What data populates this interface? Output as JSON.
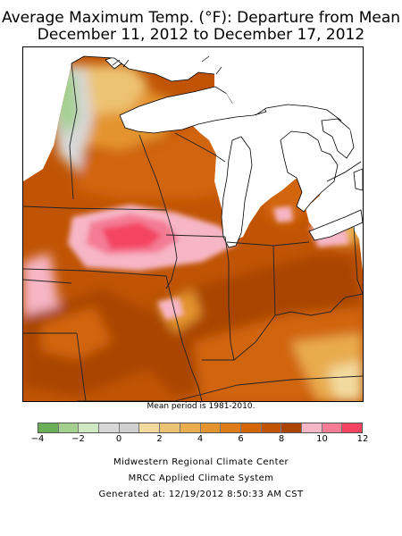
{
  "title": {
    "line1": "Average Maximum Temp. (°F): Departure from Mean",
    "line2": "December 11, 2012 to December 17, 2012"
  },
  "map": {
    "region": "Upper Midwest (MN, WI, MI, IA, MO, IL, IN, OH, KY)",
    "note": "Mean period is 1981-2010."
  },
  "legend": {
    "bins": [
      {
        "from": -4,
        "to": -3,
        "color": "#6aae58"
      },
      {
        "from": -3,
        "to": -2,
        "color": "#a3d08f"
      },
      {
        "from": -2,
        "to": -1,
        "color": "#cfe9c2"
      },
      {
        "from": -1,
        "to": 0,
        "color": "#d8d8d8"
      },
      {
        "from": 0,
        "to": 1,
        "color": "#d0d0d0"
      },
      {
        "from": 1,
        "to": 2,
        "color": "#f2da9e"
      },
      {
        "from": 2,
        "to": 3,
        "color": "#ecc372"
      },
      {
        "from": 3,
        "to": 4,
        "color": "#e9ac4e"
      },
      {
        "from": 4,
        "to": 5,
        "color": "#e4942f"
      },
      {
        "from": 5,
        "to": 6,
        "color": "#df7c1a"
      },
      {
        "from": 6,
        "to": 7,
        "color": "#d16508"
      },
      {
        "from": 7,
        "to": 8,
        "color": "#c05404"
      },
      {
        "from": 8,
        "to": 9,
        "color": "#a94402"
      },
      {
        "from": 9,
        "to": 10,
        "color": "#f7b6c6"
      },
      {
        "from": 10,
        "to": 11,
        "color": "#f47c95"
      },
      {
        "from": 11,
        "to": 12,
        "color": "#f44462"
      }
    ],
    "tick_labels": [
      "−4",
      "−2",
      "0",
      "2",
      "4",
      "6",
      "8",
      "10",
      "12"
    ]
  },
  "footer": {
    "line1": "Midwestern Regional Climate Center",
    "line2": "MRCC Applied Climate System",
    "line3": "Generated at: 12/19/2012 8:50:33 AM CST"
  }
}
